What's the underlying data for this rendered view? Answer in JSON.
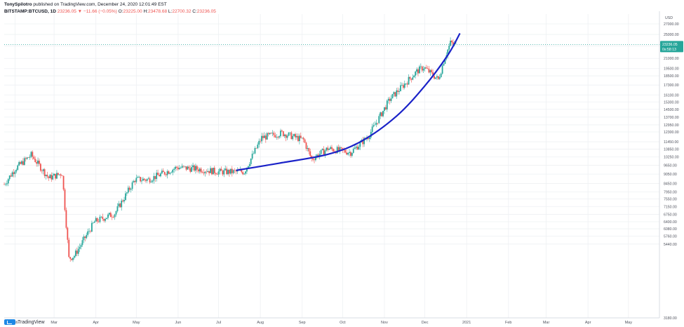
{
  "header": {
    "author": "TonySpilotro",
    "published_text": "published on TradingView.com, December 24, 2020 12:01:49 EST",
    "symbol": "BITSTAMP:BTCUSD, 1D",
    "last": "23236.05",
    "change": "▼ −11.66 (−0.05%)",
    "o_label": "O:",
    "o_value": "23225.00",
    "h_label": "H:",
    "h_value": "23478.68",
    "l_label": "L:",
    "l_value": "22700.32",
    "c_label": "C:",
    "c_value": "23236.05"
  },
  "footer": {
    "brand": "TradingView"
  },
  "colors": {
    "up": "#26a69a",
    "down": "#ef5350",
    "trendline": "#1a22c8",
    "price_label_bg": "#26a69a",
    "grid": "#eef0f3"
  },
  "chart_data": {
    "type": "candlestick",
    "currency_label": "USD",
    "y_scale": "log",
    "ylim": [
      3180,
      29000
    ],
    "y_ticks": [
      "27000.00",
      "25000.00",
      "23000.00",
      "21000.00",
      "19500.00",
      "18500.00",
      "17300.00",
      "16100.00",
      "15300.00",
      "14500.00",
      "13700.00",
      "12950.00",
      "12300.00",
      "11450.00",
      "10850.00",
      "10250.00",
      "9650.00",
      "9050.00",
      "8450.00",
      "7950.00",
      "7550.00",
      "7150.00",
      "6750.00",
      "6400.00",
      "6080.00",
      "5760.00",
      "5440.00",
      "3180.00"
    ],
    "x_ticks": [
      "Feb",
      "Mar",
      "Apr",
      "May",
      "Jun",
      "Jul",
      "Aug",
      "Sep",
      "Oct",
      "Nov",
      "Dec",
      "2021",
      "Feb",
      "Mar",
      "Apr",
      "May"
    ],
    "last_price": "23236.05",
    "countdown": "0s:58:13",
    "anchors": [
      [
        "2020-01-24",
        8400
      ],
      [
        "2020-02-01",
        9400
      ],
      [
        "2020-02-13",
        10400
      ],
      [
        "2020-02-26",
        8800
      ],
      [
        "2020-03-07",
        9100
      ],
      [
        "2020-03-12",
        4900
      ],
      [
        "2020-03-16",
        5000
      ],
      [
        "2020-03-31",
        6400
      ],
      [
        "2020-04-15",
        6800
      ],
      [
        "2020-04-30",
        8700
      ],
      [
        "2020-05-10",
        8700
      ],
      [
        "2020-05-31",
        9500
      ],
      [
        "2020-06-15",
        9400
      ],
      [
        "2020-07-01",
        9200
      ],
      [
        "2020-07-20",
        9200
      ],
      [
        "2020-08-02",
        11800
      ],
      [
        "2020-08-17",
        12200
      ],
      [
        "2020-09-02",
        11600
      ],
      [
        "2020-09-08",
        10100
      ],
      [
        "2020-09-20",
        10900
      ],
      [
        "2020-10-07",
        10600
      ],
      [
        "2020-10-20",
        11900
      ],
      [
        "2020-11-05",
        15600
      ],
      [
        "2020-11-18",
        17800
      ],
      [
        "2020-11-25",
        19100
      ],
      [
        "2020-11-30",
        19700
      ],
      [
        "2020-12-11",
        18000
      ],
      [
        "2020-12-16",
        21300
      ],
      [
        "2020-12-20",
        23500
      ],
      [
        "2020-12-24",
        23236
      ]
    ],
    "trendline": {
      "label": "",
      "points": [
        [
          "2020-07-14",
          9300
        ],
        [
          "2020-08-15",
          9800
        ],
        [
          "2020-09-20",
          10450
        ],
        [
          "2020-10-15",
          11500
        ],
        [
          "2020-11-10",
          13800
        ],
        [
          "2020-12-01",
          17200
        ],
        [
          "2020-12-18",
          21500
        ],
        [
          "2020-12-27",
          25200
        ]
      ]
    }
  }
}
